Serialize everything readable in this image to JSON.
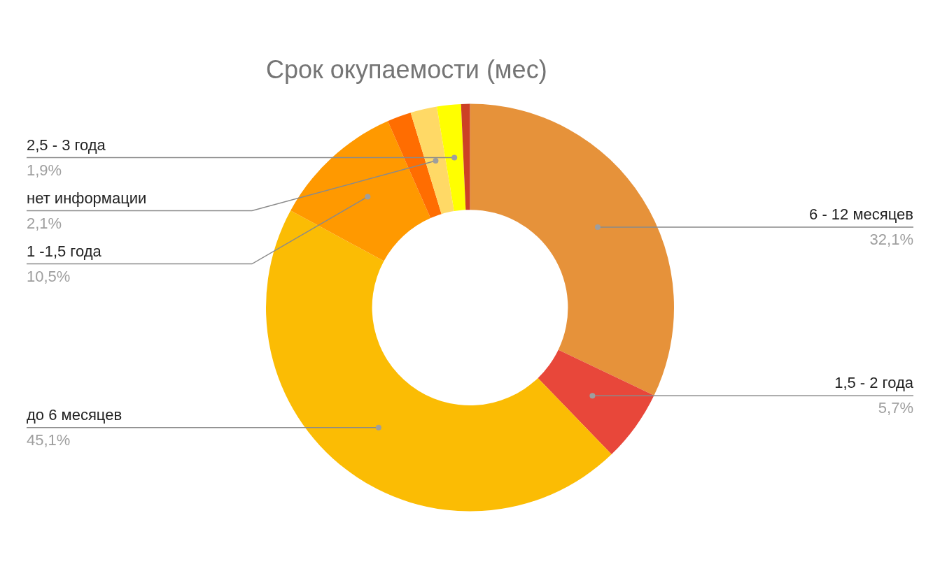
{
  "chart_data": {
    "type": "donut",
    "title": "Срок окупаемости (мес)",
    "categories": [
      "6 - 12 месяцев",
      "1,5 - 2 года",
      "до 6 месяцев",
      "1 -1,5 года",
      null,
      "нет информации",
      "2,5 - 3 года",
      null
    ],
    "values": [
      32.1,
      5.7,
      45.1,
      10.5,
      1.9,
      2.1,
      1.9,
      0.7
    ],
    "value_labels": [
      "32,1%",
      "5,7%",
      "45,1%",
      "10,5%",
      null,
      "2,1%",
      "1,9%",
      null
    ],
    "colors": [
      "#e6923a",
      "#e8473a",
      "#fbbc04",
      "#ff9900",
      "#ff6d01",
      "#ffd966",
      "#ffff00",
      "#cc4125"
    ],
    "legend": false
  }
}
